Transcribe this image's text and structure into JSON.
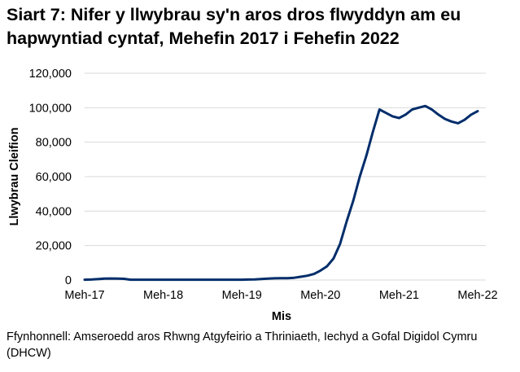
{
  "chart_data": {
    "type": "line",
    "title": "Siart 7: Nifer y llwybrau sy'n aros dros flwyddyn am eu hapwyntiad cyntaf, Mehefin 2017 i Fehefin 2022",
    "xlabel": "Mis",
    "ylabel": "Llwybrau Cleifion",
    "ylim": [
      0,
      120000
    ],
    "y_ticks": [
      "0",
      "20,000",
      "40,000",
      "60,000",
      "80,000",
      "100,000",
      "120,000"
    ],
    "x_ticks": [
      "Meh-17",
      "Meh-18",
      "Meh-19",
      "Meh-20",
      "Meh-21",
      "Meh-22"
    ],
    "grid": "horizontal",
    "legend": "none",
    "line_color": "#002D6A",
    "series": [
      {
        "values": [
          200,
          300,
          500,
          800,
          900,
          800,
          700,
          200,
          200,
          200,
          200,
          200,
          200,
          200,
          200,
          200,
          200,
          200,
          200,
          200,
          200,
          200,
          200,
          200,
          200,
          300,
          400,
          600,
          800,
          1000,
          1100,
          1100,
          1300,
          1900,
          2500,
          3500,
          5500,
          8000,
          12500,
          21000,
          34000,
          46000,
          60000,
          72000,
          86000,
          99000,
          97000,
          95000,
          94000,
          96000,
          99000,
          100000,
          101000,
          99000,
          96000,
          93500,
          92000,
          91000,
          93000,
          96000,
          98000
        ]
      }
    ]
  },
  "source": "Ffynhonnell: Amseroedd aros Rhwng Atgyfeirio a Thriniaeth, Iechyd a Gofal Digidol Cymru (DHCW)"
}
